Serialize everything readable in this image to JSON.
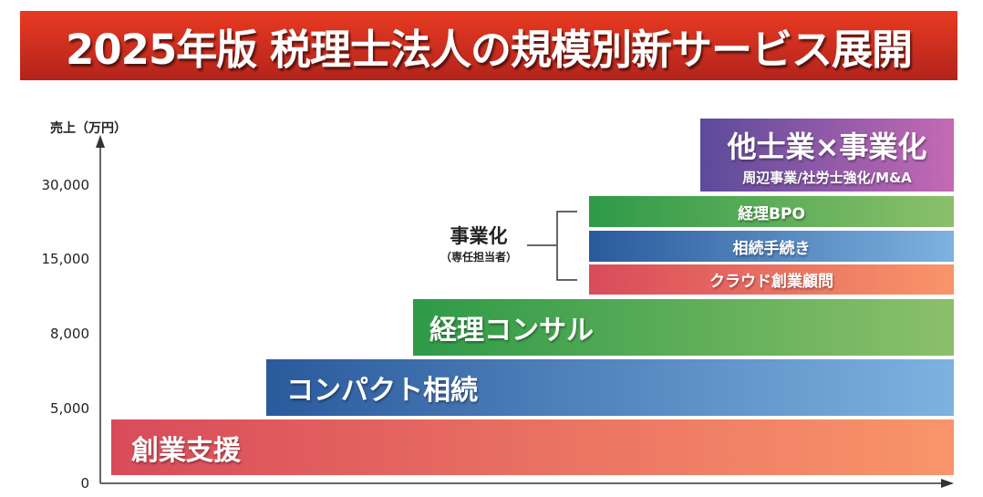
{
  "title": "2025年版 税理士法人の規模別新サービス展開",
  "y_axis": {
    "label": "売上（万円）",
    "ticks": [
      "30,000",
      "15,000",
      "8,000",
      "5,000",
      "0"
    ]
  },
  "tiers": [
    {
      "label": "創業支援",
      "colors": [
        "#d94b5a",
        "#f9956a"
      ]
    },
    {
      "label": "コンパクト相続",
      "colors": [
        "#2a5a9c",
        "#7eb2e0"
      ]
    },
    {
      "label": "経理コンサル",
      "colors": [
        "#2e9a48",
        "#8cc06a"
      ]
    }
  ],
  "business_group": {
    "label": "事業化",
    "sub": "（専任担当者）",
    "items": [
      {
        "label": "経理BPO",
        "colors": [
          "#2e9a48",
          "#8cc06a"
        ]
      },
      {
        "label": "相続手続き",
        "colors": [
          "#2a5a9c",
          "#7eb2e0"
        ]
      },
      {
        "label": "クラウド創業顧問",
        "colors": [
          "#d94b5a",
          "#f9956a"
        ]
      }
    ]
  },
  "top_tier": {
    "label": "他士業×事業化",
    "sub": "周辺事業/社労士強化/M&A",
    "colors": [
      "#5b4a9a",
      "#c46ab5"
    ]
  }
}
